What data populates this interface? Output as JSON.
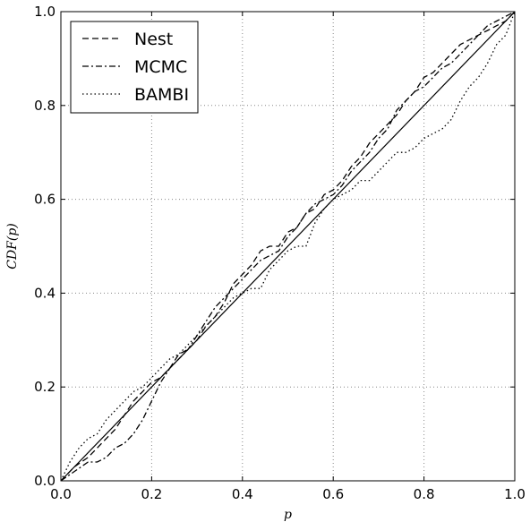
{
  "chart_data": {
    "type": "line",
    "title": "",
    "xlabel": "p",
    "ylabel": "CDF(p)",
    "xlim": [
      0,
      1
    ],
    "ylim": [
      0,
      1
    ],
    "grid": true,
    "legend_position": "top-left",
    "x_ticks": [
      "0.0",
      "0.2",
      "0.4",
      "0.6",
      "0.8",
      "1.0"
    ],
    "y_ticks": [
      "0.0",
      "0.2",
      "0.4",
      "0.6",
      "0.8",
      "1.0"
    ],
    "line_color": "#000000",
    "grid_color": "#888888",
    "reference_line": {
      "x": [
        0,
        1
      ],
      "y": [
        0,
        1
      ],
      "style": "solid"
    },
    "series": [
      {
        "name": "Nest",
        "style": "dashed",
        "x": [
          0.0,
          0.03,
          0.06,
          0.08,
          0.1,
          0.12,
          0.14,
          0.16,
          0.18,
          0.2,
          0.22,
          0.24,
          0.26,
          0.28,
          0.3,
          0.32,
          0.34,
          0.36,
          0.38,
          0.4,
          0.42,
          0.44,
          0.46,
          0.48,
          0.5,
          0.52,
          0.54,
          0.56,
          0.58,
          0.6,
          0.62,
          0.64,
          0.66,
          0.68,
          0.7,
          0.72,
          0.74,
          0.76,
          0.78,
          0.8,
          0.82,
          0.84,
          0.86,
          0.88,
          0.9,
          0.92,
          0.94,
          0.96,
          0.98,
          1.0
        ],
        "y": [
          0.0,
          0.03,
          0.05,
          0.07,
          0.09,
          0.11,
          0.14,
          0.17,
          0.19,
          0.21,
          0.22,
          0.24,
          0.27,
          0.28,
          0.3,
          0.33,
          0.35,
          0.38,
          0.42,
          0.44,
          0.46,
          0.49,
          0.5,
          0.5,
          0.53,
          0.54,
          0.57,
          0.58,
          0.61,
          0.62,
          0.64,
          0.67,
          0.69,
          0.72,
          0.74,
          0.76,
          0.78,
          0.81,
          0.83,
          0.86,
          0.87,
          0.89,
          0.91,
          0.93,
          0.94,
          0.95,
          0.96,
          0.97,
          0.98,
          1.0
        ]
      },
      {
        "name": "MCMC",
        "style": "dashdot",
        "x": [
          0.0,
          0.03,
          0.06,
          0.08,
          0.1,
          0.12,
          0.14,
          0.16,
          0.18,
          0.2,
          0.22,
          0.24,
          0.26,
          0.28,
          0.3,
          0.32,
          0.34,
          0.36,
          0.38,
          0.4,
          0.42,
          0.44,
          0.46,
          0.48,
          0.5,
          0.52,
          0.54,
          0.56,
          0.58,
          0.6,
          0.62,
          0.64,
          0.66,
          0.68,
          0.7,
          0.72,
          0.74,
          0.76,
          0.78,
          0.8,
          0.82,
          0.84,
          0.86,
          0.88,
          0.9,
          0.92,
          0.94,
          0.96,
          0.98,
          1.0
        ],
        "y": [
          0.0,
          0.02,
          0.04,
          0.04,
          0.05,
          0.07,
          0.08,
          0.1,
          0.13,
          0.17,
          0.21,
          0.24,
          0.26,
          0.28,
          0.31,
          0.34,
          0.37,
          0.39,
          0.41,
          0.43,
          0.45,
          0.47,
          0.48,
          0.49,
          0.52,
          0.54,
          0.57,
          0.59,
          0.6,
          0.61,
          0.63,
          0.66,
          0.68,
          0.7,
          0.73,
          0.75,
          0.79,
          0.81,
          0.83,
          0.84,
          0.86,
          0.88,
          0.89,
          0.91,
          0.93,
          0.95,
          0.97,
          0.98,
          0.99,
          1.0
        ]
      },
      {
        "name": "BAMBI",
        "style": "dotted",
        "x": [
          0.0,
          0.02,
          0.04,
          0.06,
          0.08,
          0.1,
          0.12,
          0.14,
          0.16,
          0.18,
          0.2,
          0.22,
          0.24,
          0.26,
          0.28,
          0.3,
          0.32,
          0.34,
          0.36,
          0.38,
          0.4,
          0.42,
          0.44,
          0.46,
          0.48,
          0.5,
          0.52,
          0.54,
          0.56,
          0.58,
          0.6,
          0.62,
          0.64,
          0.66,
          0.68,
          0.7,
          0.72,
          0.74,
          0.76,
          0.78,
          0.8,
          0.82,
          0.84,
          0.86,
          0.88,
          0.9,
          0.92,
          0.94,
          0.96,
          0.98,
          1.0
        ],
        "y": [
          0.0,
          0.04,
          0.07,
          0.09,
          0.1,
          0.13,
          0.15,
          0.17,
          0.19,
          0.2,
          0.22,
          0.24,
          0.26,
          0.27,
          0.29,
          0.31,
          0.33,
          0.35,
          0.37,
          0.39,
          0.4,
          0.41,
          0.41,
          0.45,
          0.47,
          0.49,
          0.5,
          0.5,
          0.55,
          0.58,
          0.6,
          0.61,
          0.62,
          0.64,
          0.64,
          0.66,
          0.68,
          0.7,
          0.7,
          0.71,
          0.73,
          0.74,
          0.75,
          0.77,
          0.81,
          0.84,
          0.86,
          0.89,
          0.93,
          0.95,
          1.0
        ]
      }
    ]
  }
}
